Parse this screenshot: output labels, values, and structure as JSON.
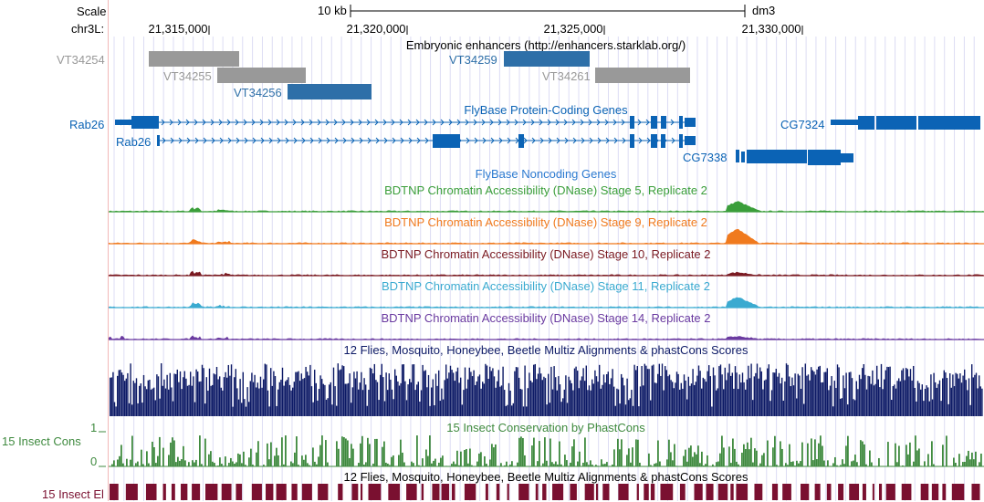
{
  "header": {
    "scale_label": "Scale",
    "chrom_label": "chr3L:",
    "scale_bar_label": "10 kb",
    "assembly": "dm3",
    "ticks": [
      "21,315,000",
      "21,320,000",
      "21,325,000",
      "21,330,000"
    ]
  },
  "enhancers": {
    "title": "Embryonic enhancers (http://enhancers.starklab.org/)",
    "items": [
      {
        "name": "VT34254",
        "color": "#999999"
      },
      {
        "name": "VT34255",
        "color": "#999999"
      },
      {
        "name": "VT34256",
        "color": "#2e6fa8"
      },
      {
        "name": "VT34259",
        "color": "#2e6fa8"
      },
      {
        "name": "VT34261",
        "color": "#999999"
      }
    ]
  },
  "genes": {
    "title": "FlyBase Protein-Coding Genes",
    "color": "#0b63b5",
    "items": [
      "Rab26",
      "Rab26",
      "CG7324",
      "CG7338"
    ]
  },
  "noncoding": {
    "title": "FlyBase Noncoding Genes",
    "color": "#2c7ad0"
  },
  "dnase_tracks": [
    {
      "title": "BDTNP Chromatin Accessibility (DNase) Stage 5, Replicate 2",
      "color": "#3a9e3a"
    },
    {
      "title": "BDTNP Chromatin Accessibility (DNase) Stage 9, Replicate 2",
      "color": "#f07a1e"
    },
    {
      "title": "BDTNP Chromatin Accessibility (DNase) Stage 10, Replicate 2",
      "color": "#7a1a22"
    },
    {
      "title": "BDTNP Chromatin Accessibility (DNase) Stage 11, Replicate 2",
      "color": "#3aaad0"
    },
    {
      "title": "BDTNP Chromatin Accessibility (DNase) Stage 14, Replicate 2",
      "color": "#6a3aa0"
    }
  ],
  "multiz": {
    "title": "12 Flies, Mosquito, Honeybee, Beetle Multiz Alignments & phastCons Scores",
    "color": "#0d1a66"
  },
  "cons": {
    "title": "15 Insect Conservation by PhastCons",
    "side_label": "15 Insect Cons",
    "y_max": "1",
    "y_min": "0",
    "color": "#3f8a3f"
  },
  "elements": {
    "title": "12 Flies, Mosquito, Honeybee, Beetle Multiz Alignments & phastCons Scores",
    "side_label": "15 Insect El",
    "color": "#7a1030"
  }
}
